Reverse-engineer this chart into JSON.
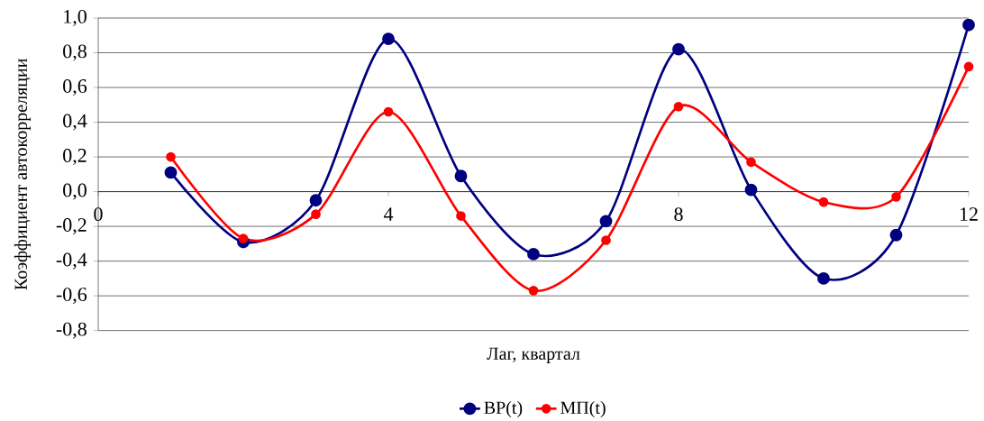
{
  "chart_data": {
    "type": "line",
    "xlabel": "Лаг, квартал",
    "ylabel": "Коэффициент автокорреляции",
    "x": [
      1,
      2,
      3,
      4,
      5,
      6,
      7,
      8,
      9,
      10,
      11,
      12
    ],
    "series": [
      {
        "name": "BP(t)",
        "color": "#000080",
        "values": [
          0.11,
          -0.29,
          -0.05,
          0.88,
          0.09,
          -0.36,
          -0.17,
          0.82,
          0.01,
          -0.5,
          -0.25,
          0.96
        ]
      },
      {
        "name": "МП(t)",
        "color": "#ff0000",
        "values": [
          0.2,
          -0.27,
          -0.13,
          0.46,
          -0.14,
          -0.57,
          -0.28,
          0.49,
          0.17,
          -0.06,
          -0.03,
          0.72
        ]
      }
    ],
    "xlim": [
      0,
      12
    ],
    "xticks": [
      0,
      4,
      8,
      12
    ],
    "ylim": [
      -0.8,
      1.0
    ],
    "yticks": [
      {
        "value": -0.8,
        "label": "-0,8"
      },
      {
        "value": -0.6,
        "label": "-0,6"
      },
      {
        "value": -0.4,
        "label": "-0,4"
      },
      {
        "value": -0.2,
        "label": "-0,2"
      },
      {
        "value": 0.0,
        "label": "0,0"
      },
      {
        "value": 0.2,
        "label": "0,2"
      },
      {
        "value": 0.4,
        "label": "0,4"
      },
      {
        "value": 0.6,
        "label": "0,6"
      },
      {
        "value": 0.8,
        "label": "0,8"
      },
      {
        "value": 1.0,
        "label": "1,0"
      }
    ],
    "grid": "y",
    "legend": "bottom",
    "marker": "circle",
    "line_style": "solid"
  }
}
